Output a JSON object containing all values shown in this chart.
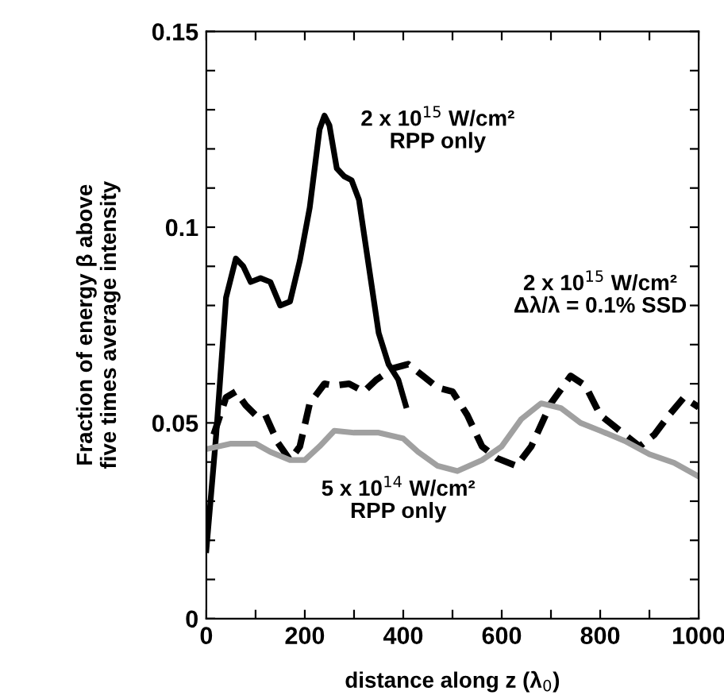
{
  "chart_data": {
    "type": "line",
    "xlabel": "distance along z (λ$_{0}$)",
    "ylabel": "Fraction of energy β above\nfive times average intensity",
    "xlim": [
      0,
      1000
    ],
    "ylim": [
      0,
      0.15
    ],
    "xticks": [
      0,
      {
        "value": 100,
        "label": null
      },
      200,
      {
        "value": 300,
        "label": null
      },
      400,
      {
        "value": 500,
        "label": null
      },
      600,
      {
        "value": 700,
        "label": null
      },
      800,
      {
        "value": 900,
        "label": null
      },
      1000
    ],
    "yticks": [
      0,
      {
        "value": 0.01,
        "label": null
      },
      {
        "value": 0.02,
        "label": null
      },
      {
        "value": 0.03,
        "label": null
      },
      {
        "value": 0.04,
        "label": null
      },
      0.05,
      {
        "value": 0.06,
        "label": null
      },
      {
        "value": 0.07,
        "label": null
      },
      {
        "value": 0.08,
        "label": null
      },
      {
        "value": 0.09,
        "label": null
      },
      0.1,
      {
        "value": 0.11,
        "label": null
      },
      {
        "value": 0.12,
        "label": null
      },
      {
        "value": 0.13,
        "label": null
      },
      {
        "value": 0.14,
        "label": null
      },
      0.15
    ],
    "grid": false,
    "marker": "none",
    "annotations": [
      "2 x 10$^{15}$ W/cm²\nRPP only",
      "2 x 10$^{15}$ W/cm²\nΔλ/λ = 0.1% SSD",
      "5 x 10$^{14}$ W/cm²\nRPP only"
    ],
    "series": [
      {
        "color": "#000000",
        "line_style": "solid",
        "x": [
          0,
          20,
          40,
          60,
          75,
          90,
          110,
          130,
          150,
          170,
          190,
          210,
          230,
          240,
          250,
          265,
          280,
          295,
          310,
          330,
          350,
          370,
          390,
          405
        ],
        "values": [
          0.0175,
          0.047,
          0.082,
          0.092,
          0.09,
          0.086,
          0.087,
          0.086,
          0.08,
          0.081,
          0.0915,
          0.105,
          0.125,
          0.1285,
          0.126,
          0.115,
          0.113,
          0.112,
          0.107,
          0.09,
          0.073,
          0.065,
          0.061,
          0.0545
        ]
      },
      {
        "color": "#000000",
        "line_style": "dashed",
        "x": [
          15,
          40,
          60,
          80,
          100,
          120,
          145,
          170,
          190,
          210,
          240,
          260,
          290,
          320,
          345,
          380,
          410,
          440,
          470,
          500,
          530,
          560,
          590,
          630,
          660,
          700,
          740,
          770,
          800,
          840,
          880,
          910,
          940,
          970,
          1000
        ],
        "values": [
          0.047,
          0.0565,
          0.058,
          0.0545,
          0.052,
          0.052,
          0.045,
          0.0405,
          0.044,
          0.055,
          0.06,
          0.0595,
          0.06,
          0.058,
          0.061,
          0.064,
          0.065,
          0.062,
          0.059,
          0.058,
          0.052,
          0.044,
          0.041,
          0.039,
          0.044,
          0.055,
          0.062,
          0.0595,
          0.052,
          0.048,
          0.044,
          0.047,
          0.052,
          0.0565,
          0.054
        ]
      },
      {
        "color": "#a0a0a0",
        "line_style": "solid",
        "x": [
          0,
          50,
          100,
          130,
          170,
          200,
          230,
          260,
          300,
          350,
          400,
          430,
          470,
          510,
          560,
          600,
          640,
          680,
          720,
          760,
          800,
          850,
          900,
          950,
          1000
        ],
        "values": [
          0.0433,
          0.0447,
          0.0447,
          0.0426,
          0.0405,
          0.0405,
          0.044,
          0.048,
          0.0475,
          0.0475,
          0.046,
          0.0426,
          0.039,
          0.0377,
          0.0405,
          0.044,
          0.051,
          0.055,
          0.0538,
          0.05,
          0.048,
          0.0454,
          0.042,
          0.0398,
          0.0363
        ]
      }
    ]
  }
}
